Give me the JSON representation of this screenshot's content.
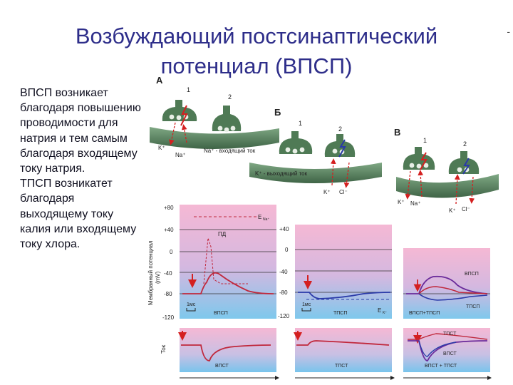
{
  "slide": {
    "title_line1": "Возбуждающий постсинаптический",
    "title_line2": "потенциал (ВПСП)",
    "corner_mark": "-"
  },
  "text": {
    "p1": "ВПСП возникает благодаря повышению проводимости для натрия и тем самым благодаря входящему току натрия.",
    "p2": "ТПСП возникатет благодаря выходящему току калия или входящему току хлора."
  },
  "figure": {
    "panels": {
      "a": {
        "letter": "А",
        "n1": "1",
        "n2": "2",
        "k": "K⁺",
        "na": "Na⁺",
        "current": "Na⁺ - входящий ток"
      },
      "b": {
        "letter": "Б",
        "n1": "1",
        "n2": "2",
        "current": "K⁺ - выходящий ток",
        "k": "K⁺",
        "cl": "Cl⁻"
      },
      "c": {
        "letter": "В",
        "n1": "1",
        "n2": "2",
        "k": "K⁺",
        "na": "Na⁺",
        "k2": "K⁺",
        "cl": "Cl⁻"
      }
    },
    "axis": {
      "ylabel_1": "Мембранный потенциал",
      "ylabel_2": "(mV)",
      "ticks": [
        "+80",
        "+40",
        "0",
        "-40",
        "-80",
        "-120"
      ],
      "ticks_mid": [
        "+40",
        "0",
        "-40",
        "-80",
        "-120"
      ],
      "current_label": "Ток"
    },
    "plots": {
      "vpsp": {
        "e_na": "E",
        "e_na_sub": "Na⁺",
        "pd": "ПД",
        "time": "1мс",
        "label": "ВПСП"
      },
      "tpsp": {
        "e_k": "E",
        "e_k_sub": "K⁺",
        "time": "1мс",
        "label": "ТПСП"
      },
      "sum": {
        "vpsp": "ВПСП",
        "tpsp": "ТПСП",
        "label": "ВПСП+ТПСП"
      }
    },
    "currents": {
      "vpst": "ВПСТ",
      "tpst": "ТПСТ",
      "sum_tpst": "ТПСТ",
      "sum_vpst": "ВПСТ",
      "sum_label": "ВПСТ + ТПСТ"
    }
  },
  "colors": {
    "title": "#2e2e8a",
    "trace_red": "#c0283c",
    "trace_blue": "#2a3aa8",
    "trace_purple": "#6a2a9a",
    "synapse_green": "#4f7a55",
    "arrow_red": "#d42020"
  }
}
